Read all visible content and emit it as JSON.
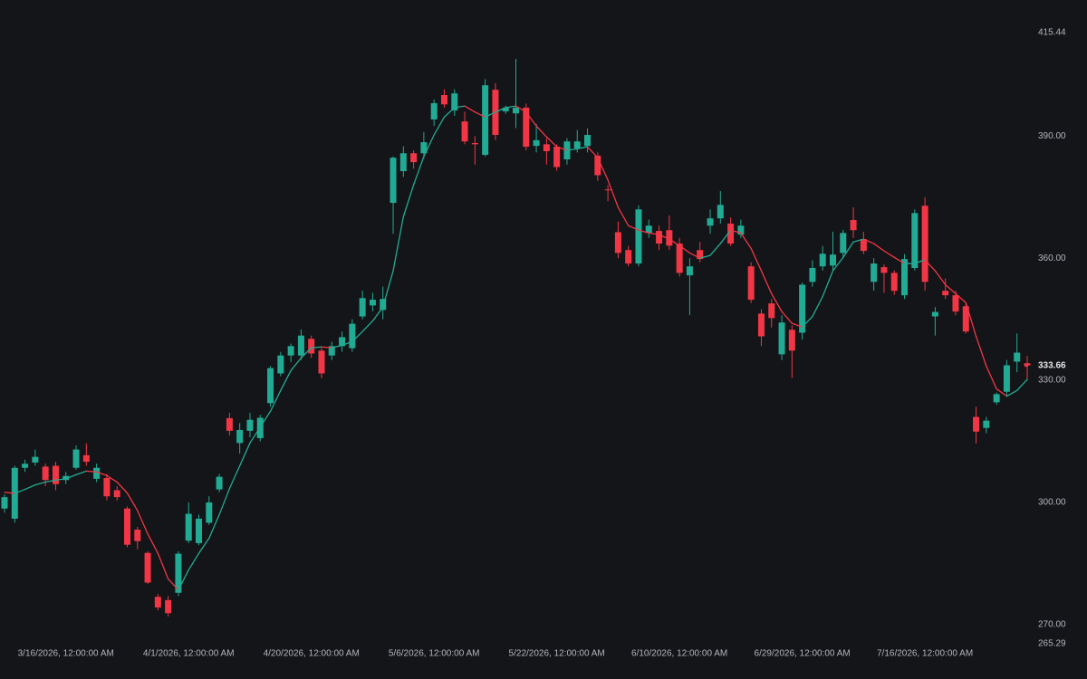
{
  "chart_data": {
    "type": "candlestick",
    "categories": [
      null,
      null,
      null,
      null,
      null,
      null,
      "3/16/2026, 12:00:00 AM",
      null,
      null,
      null,
      null,
      null,
      null,
      null,
      null,
      null,
      null,
      null,
      "4/1/2026, 12:00:00 AM",
      null,
      null,
      null,
      null,
      null,
      null,
      null,
      null,
      null,
      null,
      null,
      "4/20/2026, 12:00:00 AM",
      null,
      null,
      null,
      null,
      null,
      null,
      null,
      null,
      null,
      null,
      null,
      "5/6/2026, 12:00:00 AM",
      null,
      null,
      null,
      null,
      null,
      null,
      null,
      null,
      null,
      null,
      null,
      "5/22/2026, 12:00:00 AM",
      null,
      null,
      null,
      null,
      null,
      null,
      null,
      null,
      null,
      null,
      null,
      "6/10/2026, 12:00:00 AM",
      null,
      null,
      null,
      null,
      null,
      null,
      null,
      null,
      null,
      null,
      null,
      "6/29/2026, 12:00:00 AM",
      null,
      null,
      null,
      null,
      null,
      null,
      null,
      null,
      null,
      null,
      null,
      "7/16/2026, 12:00:00 AM",
      null,
      null,
      null,
      null,
      null,
      null,
      null,
      null,
      null,
      null
    ],
    "open": [
      298.5,
      296,
      308.5,
      309.8,
      308.8,
      309,
      305.5,
      308.5,
      311.6,
      305.8,
      306,
      303,
      298.5,
      293.3,
      287.6,
      276.8,
      276,
      277.8,
      290.6,
      290,
      295,
      303.2,
      320.7,
      314.6,
      317.6,
      315.8,
      324.4,
      331.7,
      336.1,
      336.1,
      340.2,
      337.3,
      336.1,
      338.4,
      337.9,
      345.7,
      348.4,
      347.3,
      373.6,
      381.4,
      385.8,
      385.8,
      394.1,
      400.1,
      396.3,
      393.6,
      388.3,
      385.4,
      401.4,
      396.1,
      395.6,
      397,
      387.6,
      388,
      387.4,
      384.3,
      387,
      387.6,
      385.2,
      376.9,
      366.4,
      362,
      358.7,
      366.2,
      366.7,
      366.9,
      363.6,
      355.8,
      362,
      368,
      369.8,
      368.5,
      365.8,
      358,
      346.4,
      348.9,
      336.4,
      342.4,
      341.7,
      354.2,
      358,
      358.2,
      361.3,
      369.4,
      364.7,
      354.2,
      357.8,
      356.4,
      350.9,
      357.6,
      372.9,
      345.7,
      352,
      350.9,
      348.2,
      321,
      318.3,
      324.6,
      327.2,
      334.6,
      334.2
    ],
    "high": [
      302,
      309,
      310.5,
      313,
      309.5,
      310,
      307.5,
      314,
      314.5,
      309.5,
      307,
      304,
      299,
      294,
      288,
      277.5,
      277,
      288,
      300,
      297,
      301.5,
      307,
      322,
      319.5,
      322,
      321.5,
      333.5,
      337,
      339,
      342.5,
      341,
      338,
      339.5,
      342,
      345,
      352,
      351.5,
      353,
      385,
      387.5,
      386.5,
      391,
      399,
      401.5,
      401.5,
      396,
      390,
      404,
      403,
      397.5,
      409,
      398,
      393,
      389.5,
      388,
      389.5,
      391.5,
      391.9,
      386,
      378,
      369,
      363,
      373,
      369.5,
      368,
      370.5,
      365,
      360,
      364,
      372,
      376.5,
      370,
      369.5,
      359,
      347.5,
      350,
      346,
      343.5,
      354,
      359.5,
      363,
      366.5,
      367,
      372.5,
      366.5,
      360,
      358.5,
      357,
      361,
      372,
      375,
      348,
      355,
      352,
      349,
      323.5,
      321,
      327,
      335,
      341.5,
      336
    ],
    "low": [
      297.5,
      295,
      307.5,
      309,
      304,
      303,
      304.5,
      308,
      309,
      305,
      300.5,
      300.5,
      289,
      288.5,
      280,
      273.5,
      272,
      277,
      290,
      289.5,
      294.5,
      302.5,
      316.5,
      312,
      316,
      315,
      323.5,
      331,
      334.5,
      335,
      335.5,
      330.5,
      335,
      337,
      337,
      345,
      347,
      345,
      366,
      380,
      382,
      384.5,
      392.5,
      397,
      395,
      388,
      383,
      385,
      389,
      395.5,
      392,
      386.5,
      386,
      383,
      381.5,
      383,
      386,
      386,
      379,
      374,
      360,
      358,
      358,
      365,
      362,
      362,
      355.5,
      346,
      359,
      366,
      368.5,
      363,
      365,
      349,
      338.4,
      343,
      335,
      330.6,
      340,
      353,
      357,
      357,
      360,
      365,
      361,
      352,
      351.5,
      351,
      350,
      357,
      352,
      341,
      350,
      346,
      341.5,
      314.5,
      317,
      324,
      326,
      332,
      330
    ],
    "close": [
      301.3,
      308.5,
      309.5,
      311.2,
      305.5,
      304.5,
      306.5,
      313,
      310,
      308.5,
      301.5,
      301.3,
      289.6,
      290.5,
      280.3,
      274.2,
      272.8,
      287.4,
      297.2,
      296,
      300,
      306.3,
      317.6,
      317.8,
      320.3,
      320.8,
      333,
      336.1,
      338.4,
      341,
      336.6,
      331.7,
      338.4,
      340.6,
      343.9,
      350.2,
      349.8,
      350,
      384.7,
      385.8,
      383.6,
      388.5,
      398.1,
      397.8,
      400.5,
      388.7,
      388,
      402.5,
      390.3,
      397,
      397,
      387.4,
      389,
      386.3,
      382.4,
      388.7,
      388.7,
      390.3,
      380.4,
      376.7,
      361.3,
      358.7,
      372,
      368,
      363.6,
      363.1,
      356.4,
      358,
      359.8,
      369.8,
      373.1,
      363.6,
      368,
      349.8,
      340.8,
      345.3,
      344.2,
      337.3,
      353.5,
      357.6,
      361.1,
      360.9,
      366.2,
      366.9,
      361.8,
      358.7,
      356.4,
      352,
      359.8,
      371.1,
      354.2,
      346.8,
      350.9,
      346.9,
      342,
      317.4,
      320.1,
      326.6,
      333.7,
      336.8,
      333.66
    ],
    "ma": {
      "values": [
        302.5,
        302.2,
        303.2,
        304.3,
        305,
        305.5,
        305.8,
        306.8,
        307.7,
        307.5,
        306.6,
        305,
        302.3,
        298,
        292.3,
        287.5,
        281.2,
        278.5,
        283.4,
        287.5,
        291.2,
        297,
        303.4,
        309,
        314.6,
        318.5,
        322.4,
        327.5,
        332.4,
        335.5,
        338,
        338.2,
        338,
        338.6,
        339.5,
        342,
        344.6,
        348,
        356.9,
        370.2,
        378,
        385,
        390.3,
        394.7,
        397,
        397.4,
        395.9,
        394.7,
        395.9,
        397,
        397.4,
        395.9,
        392.5,
        389.8,
        387.4,
        386.5,
        386.9,
        387.4,
        384.7,
        379.2,
        372.5,
        368,
        366.9,
        366.2,
        365.8,
        364.7,
        363.1,
        361.3,
        360,
        360.7,
        363.6,
        366.9,
        366.2,
        362.4,
        356.9,
        351.3,
        346.9,
        344,
        343.1,
        345.7,
        350.6,
        356.9,
        360.2,
        364,
        364.7,
        363.6,
        361.8,
        360.2,
        358.7,
        358.7,
        359.6,
        356.9,
        353.5,
        351.3,
        349.1,
        340.8,
        333.5,
        327.9,
        326.1,
        327.5,
        330.2
      ]
    },
    "up_color": "#22ab94",
    "down_color": "#f23645",
    "ylim": [
      265.29,
      415.44
    ],
    "yticks": [
      265.29,
      {
        "value": 270,
        "label": "270.00"
      },
      {
        "value": 300,
        "label": "300.00"
      },
      {
        "value": 330,
        "label": "330.00"
      },
      {
        "value": 360,
        "label": "360.00"
      },
      {
        "value": 390,
        "label": "390.00"
      },
      415.44
    ]
  }
}
